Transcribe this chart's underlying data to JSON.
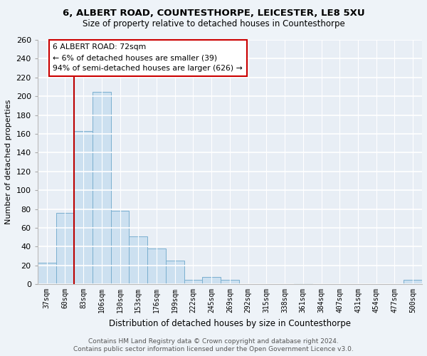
{
  "title": "6, ALBERT ROAD, COUNTESTHORPE, LEICESTER, LE8 5XU",
  "subtitle": "Size of property relative to detached houses in Countesthorpe",
  "xlabel": "Distribution of detached houses by size in Countesthorpe",
  "ylabel": "Number of detached properties",
  "bar_labels": [
    "37sqm",
    "60sqm",
    "83sqm",
    "106sqm",
    "130sqm",
    "153sqm",
    "176sqm",
    "199sqm",
    "222sqm",
    "245sqm",
    "269sqm",
    "292sqm",
    "315sqm",
    "338sqm",
    "361sqm",
    "384sqm",
    "407sqm",
    "431sqm",
    "454sqm",
    "477sqm",
    "500sqm"
  ],
  "bar_values": [
    23,
    76,
    163,
    205,
    78,
    51,
    38,
    25,
    5,
    8,
    5,
    0,
    0,
    0,
    1,
    0,
    0,
    0,
    0,
    0,
    5
  ],
  "bar_color": "#cce0f0",
  "bar_edge_color": "#7aafcf",
  "vline_color": "#bb0000",
  "annotation_title": "6 ALBERT ROAD: 72sqm",
  "annotation_line1": "← 6% of detached houses are smaller (39)",
  "annotation_line2": "94% of semi-detached houses are larger (626) →",
  "ylim": [
    0,
    260
  ],
  "yticks": [
    0,
    20,
    40,
    60,
    80,
    100,
    120,
    140,
    160,
    180,
    200,
    220,
    240,
    260
  ],
  "footer1": "Contains HM Land Registry data © Crown copyright and database right 2024.",
  "footer2": "Contains public sector information licensed under the Open Government Licence v3.0.",
  "bg_color": "#eef3f8",
  "plot_bg_color": "#e8eef5"
}
